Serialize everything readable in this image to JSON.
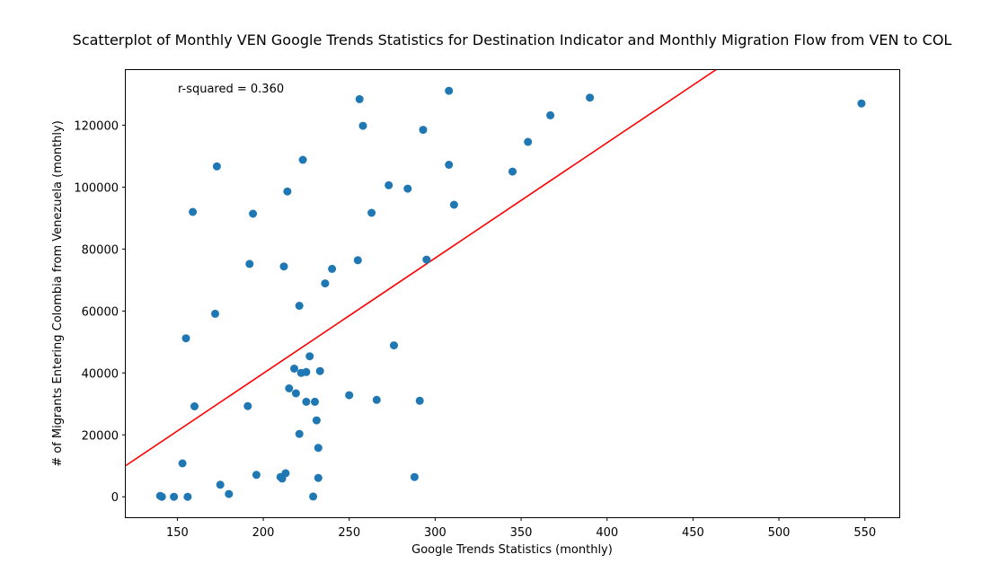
{
  "chart_data": {
    "type": "scatter",
    "title": "Scatterplot of Monthly VEN Google Trends Statistics for Destination Indicator and Monthly Migration Flow from VEN to COL",
    "xlabel": "Google Trends Statistics (monthly)",
    "ylabel": "# of Migrants Entering Colombia from Venezuela (monthly)",
    "annotation": "r-squared = 0.360",
    "xlim": [
      120,
      570
    ],
    "ylim": [
      -6600,
      137800
    ],
    "xticks": [
      150,
      200,
      250,
      300,
      350,
      400,
      450,
      500,
      550
    ],
    "yticks": [
      0,
      20000,
      40000,
      60000,
      80000,
      100000,
      120000
    ],
    "grid": false,
    "point_color": "#1f77b4",
    "line_color": "#ff0000",
    "regression_line": {
      "slope": 372.3,
      "intercept": -34600
    },
    "series": [
      {
        "x": [
          140,
          141,
          148,
          156,
          153,
          155,
          159,
          160,
          172,
          173,
          175,
          180,
          191,
          192,
          194,
          196,
          210,
          211,
          212,
          213,
          214,
          215,
          218,
          219,
          221,
          221,
          222,
          223,
          225,
          225,
          227,
          229,
          230,
          231,
          232,
          232,
          233,
          236,
          240,
          250,
          255,
          256,
          258,
          263,
          266,
          273,
          276,
          284,
          288,
          291,
          293,
          295,
          308,
          308,
          311,
          345,
          354,
          367,
          390,
          548
        ],
        "y": [
          300,
          0,
          0,
          0,
          10800,
          51200,
          92000,
          29200,
          59100,
          106700,
          3900,
          900,
          29300,
          75200,
          91400,
          7100,
          6400,
          5900,
          74400,
          7600,
          98600,
          35000,
          41400,
          33400,
          61700,
          20300,
          40000,
          108800,
          40300,
          30700,
          45400,
          100,
          30700,
          24700,
          15800,
          6100,
          40600,
          68900,
          73600,
          32800,
          76400,
          128400,
          119800,
          91700,
          31300,
          100600,
          48900,
          99500,
          6400,
          31000,
          118500,
          76600,
          107200,
          131100,
          94300,
          105000,
          114600,
          123200,
          128900,
          127000
        ]
      }
    ]
  }
}
